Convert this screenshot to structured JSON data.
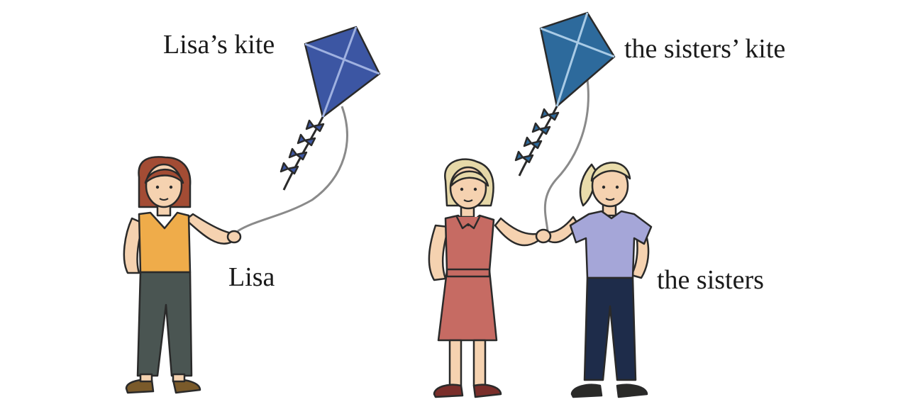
{
  "labels": {
    "lisa_kite": "Lisa’s kite",
    "sisters_kite": "the sisters’ kite",
    "lisa": "Lisa",
    "sisters": "the sisters"
  },
  "colors": {
    "lisa_kite": "#3c56a3",
    "sisters_kite": "#2d6a9c",
    "lisa_shirt": "#efac4a",
    "lisa_pants": "#4a5552",
    "lisa_hair": "#a34c34",
    "sister1_dress": "#c66b63",
    "sister1_hair": "#e6d8a8",
    "sister2_shirt": "#a5a6d8",
    "sister2_pants": "#1e2c4a",
    "sister2_hair": "#e9dcab",
    "skin": "#f5d2b0"
  }
}
